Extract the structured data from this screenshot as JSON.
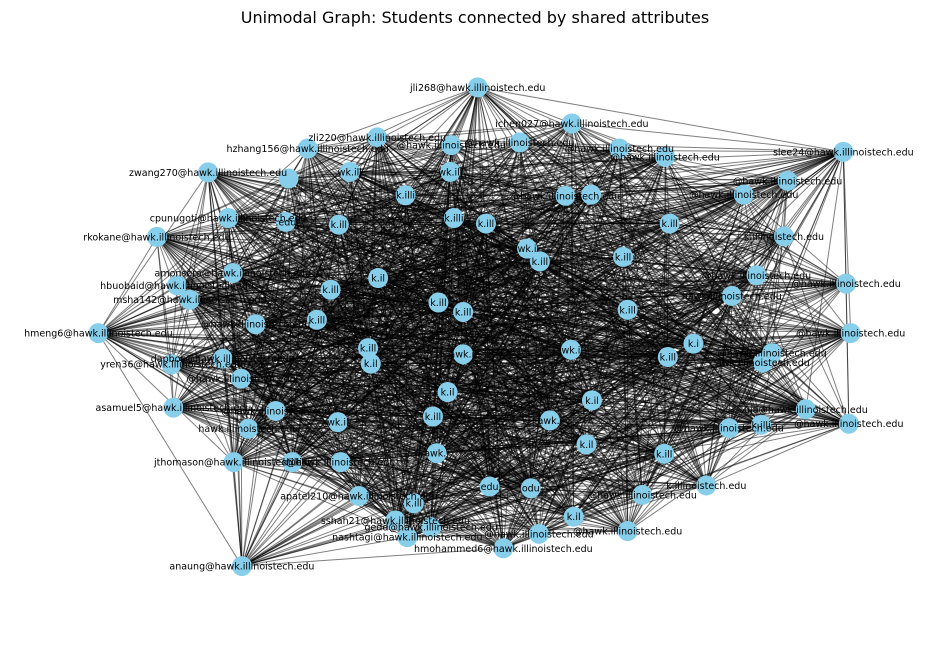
{
  "title": "Unimodal Graph: Students connected by shared attributes",
  "colors": {
    "node": "#87ceeb",
    "edge": "#000000"
  },
  "nodes": [
    {
      "label": "jli268@hawk.illinoistech.edu",
      "p": [
        0.503,
        0.042
      ]
    },
    {
      "label": "ichen027@hawk.illinoistech.edu",
      "p": [
        0.606,
        0.107
      ]
    },
    {
      "label": "zli220@hawk.illinoistech.edu",
      "p": [
        0.393,
        0.132
      ]
    },
    {
      "label": "hzhang156@hawk.illinoistech.edu",
      "p": [
        0.317,
        0.152
      ]
    },
    {
      "label": "@hawk.illinoistech.edu",
      "p": [
        0.474,
        0.146
      ]
    },
    {
      "label": "@hawk.illinoistech.edu",
      "p": [
        0.549,
        0.141
      ]
    },
    {
      "label": "@hawk.illinoistech.edu",
      "p": [
        0.658,
        0.152
      ]
    },
    {
      "label": "slee24@hawk.illinoistech.edu",
      "p": [
        0.903,
        0.158
      ]
    },
    {
      "label": "@hawk.illinoistech.edu",
      "p": [
        0.708,
        0.167
      ]
    },
    {
      "label": "zwang270@hawk.illinoistech.edu",
      "p": [
        0.208,
        0.195
      ]
    },
    {
      "label": "wk.ill",
      "p": [
        0.363,
        0.194
      ]
    },
    {
      "label": "wk.ill",
      "p": [
        0.473,
        0.194
      ]
    },
    {
      "label": "@hawk.illinoistech.edu",
      "p": [
        0.842,
        0.21
      ]
    },
    {
      "label": "",
      "p": [
        0.296,
        0.206
      ]
    },
    {
      "label": "cpunugoti@hawk.illinoistech.edu",
      "p": [
        0.23,
        0.277
      ]
    },
    {
      "label": "k.illi",
      "p": [
        0.424,
        0.236
      ]
    },
    {
      "label": "@hawk.illinoistech.edu",
      "p": [
        0.599,
        0.237
      ]
    },
    {
      "label": "@hawk.illinoistech.edu",
      "p": [
        0.794,
        0.235
      ]
    },
    {
      "label": "k.illi",
      "p": [
        0.477,
        0.277
      ]
    },
    {
      "label": "k.ill",
      "p": [
        0.512,
        0.287
      ]
    },
    {
      "label": "",
      "p": [
        0.627,
        0.235
      ]
    },
    {
      "label": ".edu",
      "p": [
        0.293,
        0.284
      ]
    },
    {
      "label": "k.ill",
      "p": [
        0.351,
        0.289
      ]
    },
    {
      "label": "k.ill",
      "p": [
        0.713,
        0.287
      ]
    },
    {
      "label": "rkokane@hawk.illinoistech.edu",
      "p": [
        0.152,
        0.311
      ]
    },
    {
      "label": "k.illinoistech.edu",
      "p": [
        0.838,
        0.31
      ]
    },
    {
      "label": "wk.i",
      "p": [
        0.557,
        0.332
      ]
    },
    {
      "label": "k.ill",
      "p": [
        0.571,
        0.355
      ]
    },
    {
      "label": "k.ill",
      "p": [
        0.662,
        0.347
      ]
    },
    {
      "label": "amonsoro@hawk.illinoistech.edu",
      "p": [
        0.235,
        0.376
      ]
    },
    {
      "label": "@hawk.illinoistech.edu",
      "p": [
        0.808,
        0.38
      ]
    },
    {
      "label": "k.il",
      "p": [
        0.394,
        0.385
      ]
    },
    {
      "label": "hbuobaid@hawk.illinoistech.edu",
      "p": [
        0.174,
        0.398
      ]
    },
    {
      "label": "k.ill",
      "p": [
        0.342,
        0.406
      ]
    },
    {
      "label": "@hawk.illinoistech.edu",
      "p": [
        0.906,
        0.395
      ]
    },
    {
      "label": "hawk.illinoistech.edu",
      "p": [
        0.781,
        0.417
      ]
    },
    {
      "label": "msha142@hawk.illinoistech.edu",
      "p": [
        0.188,
        0.424
      ]
    },
    {
      "label": "k.ill",
      "p": [
        0.46,
        0.429
      ]
    },
    {
      "label": "k.ill",
      "p": [
        0.487,
        0.446
      ]
    },
    {
      "label": "k.ill",
      "p": [
        0.667,
        0.442
      ]
    },
    {
      "label": "k.ill",
      "p": [
        0.327,
        0.46
      ]
    },
    {
      "label": "@hawk.illinoistech.edu",
      "p": [
        0.26,
        0.468
      ]
    },
    {
      "label": "hmeng6@hawk.illinoistech.edu",
      "p": [
        0.088,
        0.484
      ]
    },
    {
      "label": "@hawk.illinoistech.edu",
      "p": [
        0.911,
        0.484
      ]
    },
    {
      "label": "k.i",
      "p": [
        0.739,
        0.503
      ]
    },
    {
      "label": "wk.i",
      "p": [
        0.605,
        0.514
      ]
    },
    {
      "label": "awk.il",
      "p": [
        0.487,
        0.522
      ]
    },
    {
      "label": "k.ill",
      "p": [
        0.383,
        0.511
      ]
    },
    {
      "label": "@hawk.illinoistech.edu",
      "p": [
        0.825,
        0.52
      ]
    },
    {
      "label": "dapbos@hawk.illinoistech.edu",
      "p": [
        0.224,
        0.53
      ]
    },
    {
      "label": "k.il",
      "p": [
        0.386,
        0.539
      ]
    },
    {
      "label": "k.ill",
      "p": [
        0.711,
        0.527
      ]
    },
    {
      "label": "awk.illinoistech.edu",
      "p": [
        0.815,
        0.537
      ]
    },
    {
      "label": "yren36@hawk.illinoistech.edu",
      "p": [
        0.168,
        0.54
      ]
    },
    {
      "label": "@hawk.illinoistech.edu",
      "p": [
        0.244,
        0.566
      ]
    },
    {
      "label": "k.il",
      "p": [
        0.47,
        0.59
      ]
    },
    {
      "label": "k.il",
      "p": [
        0.628,
        0.605
      ]
    },
    {
      "label": "asamuel5@hawk.illinoistech.edu",
      "p": [
        0.17,
        0.618
      ]
    },
    {
      "label": "@hawk.illinoistech.edu",
      "p": [
        0.282,
        0.624
      ]
    },
    {
      "label": "uja@hawk.illinoistech.edu",
      "p": [
        0.862,
        0.621
      ]
    },
    {
      "label": "k.ill",
      "p": [
        0.454,
        0.634
      ]
    },
    {
      "label": "awk.i",
      "p": [
        0.582,
        0.641
      ]
    },
    {
      "label": "k.illi",
      "p": [
        0.813,
        0.649
      ]
    },
    {
      "label": "wk.il",
      "p": [
        0.35,
        0.644
      ]
    },
    {
      "label": "@hawk.illinoistech.edu",
      "p": [
        0.909,
        0.647
      ]
    },
    {
      "label": "@hawk.illinoistech.edu",
      "p": [
        0.778,
        0.655
      ]
    },
    {
      "label": "hawk.illinoistech.edu",
      "p": [
        0.252,
        0.656
      ]
    },
    {
      "label": "k.il",
      "p": [
        0.622,
        0.684
      ]
    },
    {
      "label": "awk.i",
      "p": [
        0.458,
        0.7
      ]
    },
    {
      "label": "k.ill",
      "p": [
        0.707,
        0.701
      ]
    },
    {
      "label": "jthomason@hawk.illinoistech.edu",
      "p": [
        0.236,
        0.716
      ]
    },
    {
      "label": "k.illi",
      "p": [
        0.3,
        0.716
      ]
    },
    {
      "label": "@hawk.illinoistech.edu",
      "p": [
        0.353,
        0.716
      ]
    },
    {
      "label": "apatel210@hawk.illinoistech.edu",
      "p": [
        0.373,
        0.777
      ]
    },
    {
      "label": "k.illinoistech.edu",
      "p": [
        0.753,
        0.758
      ]
    },
    {
      "label": "@hawk.illinoistech.edu",
      "p": [
        0.683,
        0.775
      ]
    },
    {
      "label": "edu",
      "p": [
        0.516,
        0.76
      ]
    },
    {
      "label": "odu",
      "p": [
        0.561,
        0.763
      ]
    },
    {
      "label": "k.ill",
      "p": [
        0.433,
        0.79
      ]
    },
    {
      "label": "sshah21@hawk.illinoistech.edu",
      "p": [
        0.413,
        0.821
      ]
    },
    {
      "label": "k.il",
      "p": [
        0.608,
        0.814
      ]
    },
    {
      "label": "gedd@hawk.illinoistech.edu",
      "p": [
        0.452,
        0.833
      ]
    },
    {
      "label": "nashtagi@hawk.illinoistech.edu",
      "p": [
        0.426,
        0.851
      ]
    },
    {
      "label": "@hawk.illinoistech.edu",
      "p": [
        0.57,
        0.845
      ]
    },
    {
      "label": "@hawk.illinoistech.edu",
      "p": [
        0.667,
        0.84
      ]
    },
    {
      "label": "hmohammed6@hawk.illinoistech.edu",
      "p": [
        0.531,
        0.871
      ]
    },
    {
      "label": "anaung@hawk.illinoistech.edu",
      "p": [
        0.245,
        0.903
      ]
    }
  ]
}
